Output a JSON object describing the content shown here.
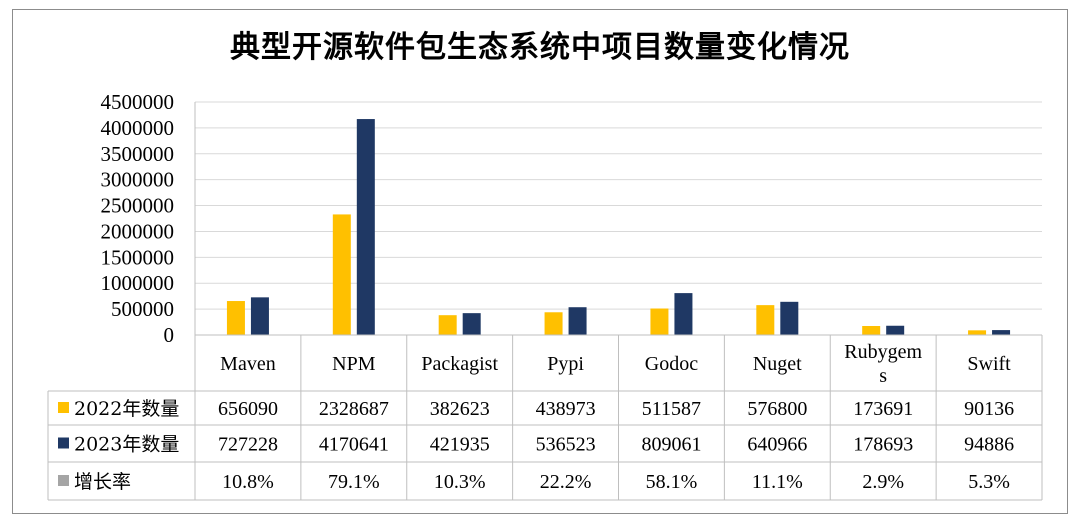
{
  "chart_data": {
    "type": "bar",
    "title": "典型开源软件包生态系统中项目数量变化情况",
    "categories": [
      "Maven",
      "NPM",
      "Packagist",
      "Pypi",
      "Godoc",
      "Nuget",
      "Rubygems",
      "Swift"
    ],
    "category_lines": [
      [
        "Maven"
      ],
      [
        "NPM"
      ],
      [
        "Packagist"
      ],
      [
        "Pypi"
      ],
      [
        "Godoc"
      ],
      [
        "Nuget"
      ],
      [
        "Rubygem",
        "s"
      ],
      [
        "Swift"
      ]
    ],
    "series": [
      {
        "name": "2022年数量",
        "color": "#FFC000",
        "values": [
          656090,
          2328687,
          382623,
          438973,
          511587,
          576800,
          173691,
          90136
        ],
        "labels": [
          "656090",
          "2328687",
          "382623",
          "438973",
          "511587",
          "576800",
          "173691",
          "90136"
        ]
      },
      {
        "name": "2023年数量",
        "color": "#1F3864",
        "values": [
          727228,
          4170641,
          421935,
          536523,
          809061,
          640966,
          178693,
          94886
        ],
        "labels": [
          "727228",
          "4170641",
          "421935",
          "536523",
          "809061",
          "640966",
          "178693",
          "94886"
        ]
      }
    ],
    "table_rows": [
      {
        "name": "增长率",
        "color": "#A5A5A5",
        "labels": [
          "10.8%",
          "79.1%",
          "10.3%",
          "22.2%",
          "58.1%",
          "11.1%",
          "2.9%",
          "5.3%"
        ]
      }
    ],
    "ylim": [
      0,
      4500000
    ],
    "yticks": [
      0,
      500000,
      1000000,
      1500000,
      2000000,
      2500000,
      3000000,
      3500000,
      4000000,
      4500000
    ],
    "ytick_labels": [
      "0",
      "500000",
      "1000000",
      "1500000",
      "2000000",
      "2500000",
      "3000000",
      "3500000",
      "4000000",
      "4500000"
    ],
    "grid": true,
    "legend": "data table"
  }
}
